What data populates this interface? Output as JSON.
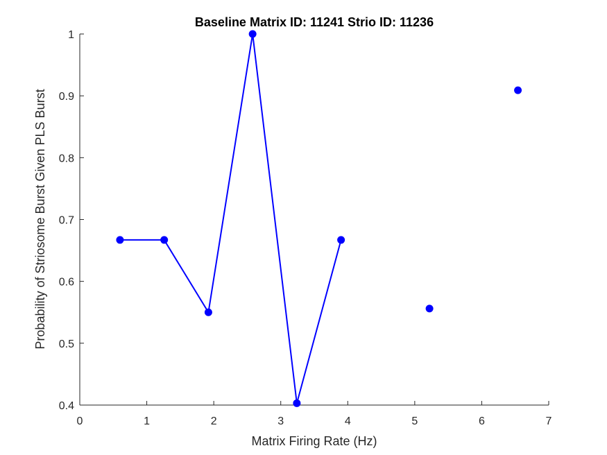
{
  "chart_data": {
    "type": "line",
    "title": "Baseline Matrix ID: 11241 Strio ID: 11236",
    "xlabel": "Matrix Firing Rate (Hz)",
    "ylabel": "Probability of Striosome Burst Given PLS Burst",
    "xlim": [
      0,
      7
    ],
    "ylim": [
      0.4,
      1
    ],
    "xticks": [
      0,
      1,
      2,
      3,
      4,
      5,
      6,
      7
    ],
    "yticks": [
      0.4,
      0.5,
      0.6,
      0.7,
      0.8,
      0.9,
      1
    ],
    "xtick_labels": [
      "0",
      "1",
      "2",
      "3",
      "4",
      "5",
      "6",
      "7"
    ],
    "ytick_labels": [
      "0.4",
      "0.5",
      "0.6",
      "0.7",
      "0.8",
      "0.9",
      "1"
    ],
    "grid": false,
    "color": "#0000ff",
    "series": [
      {
        "x": [
          0.6,
          1.26,
          1.92,
          2.58,
          3.24,
          3.9,
          5.22,
          6.54
        ],
        "y": [
          0.667,
          0.667,
          0.55,
          1.0,
          0.403,
          0.667,
          0.556,
          0.909
        ],
        "connected": [
          true,
          true,
          true,
          true,
          true,
          true,
          false,
          false
        ]
      }
    ]
  }
}
